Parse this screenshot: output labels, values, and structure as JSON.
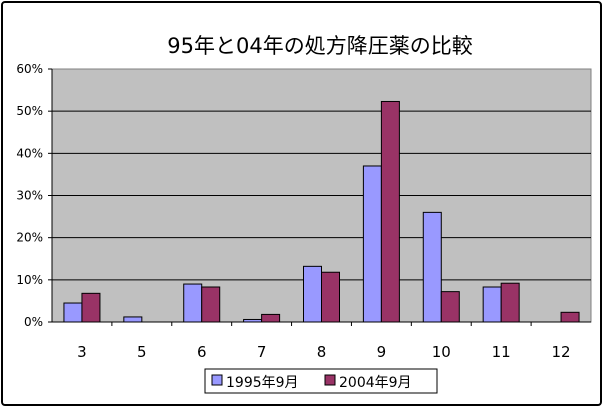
{
  "chart_data": {
    "type": "bar",
    "title": "95年と04年の処方降圧薬の比較",
    "categories": [
      "3",
      "5",
      "6",
      "7",
      "8",
      "9",
      "10",
      "11",
      "12"
    ],
    "series": [
      {
        "name": "1995年9月",
        "values": [
          4.5,
          1.2,
          9.0,
          0.6,
          13.2,
          37.0,
          26.0,
          8.3,
          0.0
        ],
        "color": "#9999ff"
      },
      {
        "name": "2004年9月",
        "values": [
          6.8,
          0.0,
          8.3,
          1.8,
          11.8,
          52.3,
          7.2,
          9.2,
          2.3
        ],
        "color": "#993366"
      }
    ],
    "ylim": [
      0,
      60
    ],
    "yticks": [
      "0%",
      "10%",
      "20%",
      "30%",
      "40%",
      "50%",
      "60%"
    ],
    "plot_background": "#c0c0c0",
    "grid": true,
    "legend_position": "bottom"
  }
}
